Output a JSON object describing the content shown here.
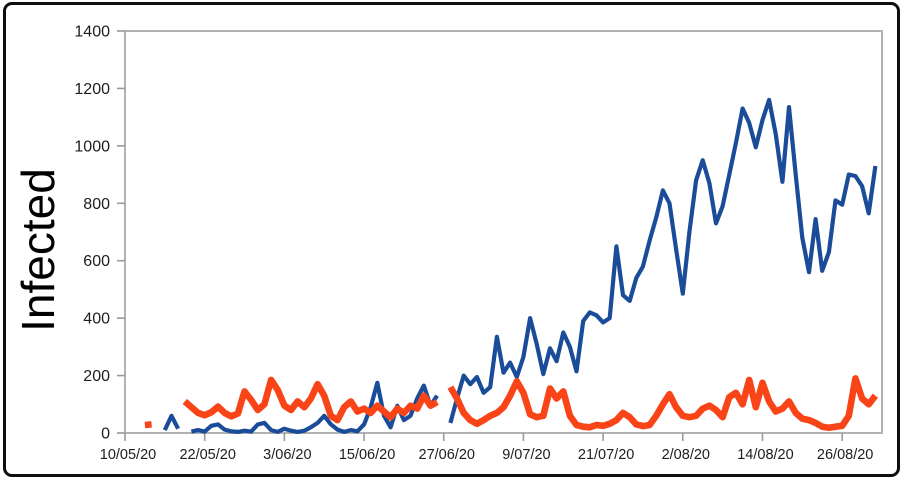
{
  "chart_data": {
    "type": "line",
    "title": "",
    "xlabel": "",
    "ylabel": "Infected",
    "ylim": [
      0,
      1400
    ],
    "y_ticks": [
      0,
      200,
      400,
      600,
      800,
      1000,
      1200,
      1400
    ],
    "x_tick_labels": [
      "10/05/20",
      "22/05/20",
      "3/06/20",
      "15/06/20",
      "27/06/20",
      "9/07/20",
      "21/07/20",
      "2/08/20",
      "14/08/20",
      "26/08/20"
    ],
    "x_tick_days": [
      0,
      12,
      24,
      36,
      48,
      60,
      72,
      84,
      96,
      108
    ],
    "days_total": 114,
    "grid": false,
    "legend_position": "none",
    "series": [
      {
        "name": "infected-daily-blue",
        "color": "#1b4c9a",
        "stroke_width": 4.2,
        "values": [
          null,
          null,
          null,
          null,
          null,
          null,
          10,
          60,
          15,
          null,
          5,
          10,
          5,
          25,
          30,
          12,
          6,
          4,
          8,
          5,
          30,
          35,
          10,
          4,
          15,
          8,
          4,
          8,
          20,
          35,
          60,
          30,
          12,
          4,
          10,
          6,
          30,
          90,
          175,
          60,
          20,
          95,
          45,
          60,
          120,
          165,
          95,
          130,
          null,
          35,
          120,
          200,
          170,
          195,
          140,
          160,
          335,
          210,
          245,
          195,
          265,
          400,
          310,
          205,
          295,
          250,
          350,
          300,
          215,
          390,
          420,
          410,
          385,
          400,
          650,
          480,
          460,
          540,
          580,
          670,
          750,
          845,
          800,
          640,
          485,
          700,
          880,
          950,
          870,
          730,
          790,
          900,
          1010,
          1130,
          1080,
          995,
          1090,
          1160,
          1040,
          875,
          1135,
          900,
          680,
          560,
          745,
          565,
          630,
          810,
          795,
          900,
          895,
          860,
          765,
          930
        ]
      },
      {
        "name": "infected-daily-orange",
        "color": "#f94418",
        "stroke_width": 6.6,
        "values": [
          null,
          null,
          null,
          28,
          30,
          null,
          null,
          null,
          null,
          110,
          90,
          70,
          62,
          72,
          92,
          70,
          58,
          68,
          145,
          115,
          80,
          100,
          185,
          150,
          95,
          80,
          110,
          90,
          120,
          170,
          130,
          60,
          45,
          90,
          110,
          75,
          85,
          70,
          95,
          75,
          55,
          85,
          70,
          95,
          85,
          130,
          95,
          108,
          null,
          160,
          120,
          70,
          45,
          32,
          45,
          60,
          70,
          90,
          130,
          180,
          140,
          65,
          55,
          60,
          155,
          120,
          145,
          60,
          28,
          22,
          20,
          28,
          25,
          32,
          45,
          70,
          55,
          30,
          24,
          28,
          60,
          100,
          135,
          90,
          60,
          55,
          60,
          85,
          95,
          80,
          55,
          125,
          140,
          100,
          185,
          90,
          175,
          110,
          75,
          85,
          110,
          70,
          50,
          45,
          35,
          22,
          18,
          22,
          25,
          60,
          190,
          120,
          100,
          130
        ]
      }
    ]
  },
  "frame": {
    "border_color": "#0e0e0e",
    "plot_border_color": "#b2b2b2",
    "tick_color": "#9a9a9a",
    "background": "#ffffff"
  }
}
